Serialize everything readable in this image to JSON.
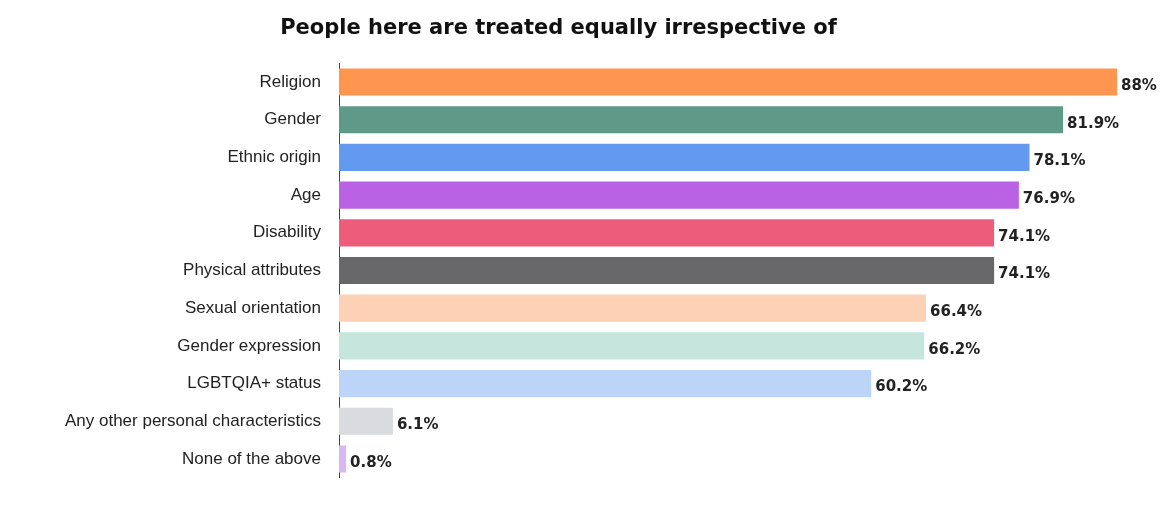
{
  "chart_data": {
    "type": "bar",
    "orientation": "horizontal",
    "title": "People here are treated equally irrespective of",
    "categories": [
      "Religion",
      "Gender",
      "Ethnic origin",
      "Age",
      "Disability",
      "Physical attributes",
      "Sexual orientation",
      "Gender expression",
      "LGBTQIA+ status",
      "Any other personal characteristics",
      "None of the above"
    ],
    "values": [
      88,
      81.9,
      78.1,
      76.9,
      74.1,
      74.1,
      66.4,
      66.2,
      60.2,
      6.1,
      0.8
    ],
    "value_labels": [
      "88%",
      "81.9%",
      "78.1%",
      "76.9%",
      "74.1%",
      "74.1%",
      "66.4%",
      "66.2%",
      "60.2%",
      "6.1%",
      "0.8%"
    ],
    "colors": [
      "#ff9650",
      "#5f9a89",
      "#6499f0",
      "#b962e3",
      "#ee5c7c",
      "#68686a",
      "#fcd1b5",
      "#c5e5dd",
      "#bcd4f7",
      "#dadbdf",
      "#d9b8f2"
    ],
    "xlim": [
      0,
      88
    ],
    "tick_labels": "y",
    "grid": false,
    "legend": false
  }
}
